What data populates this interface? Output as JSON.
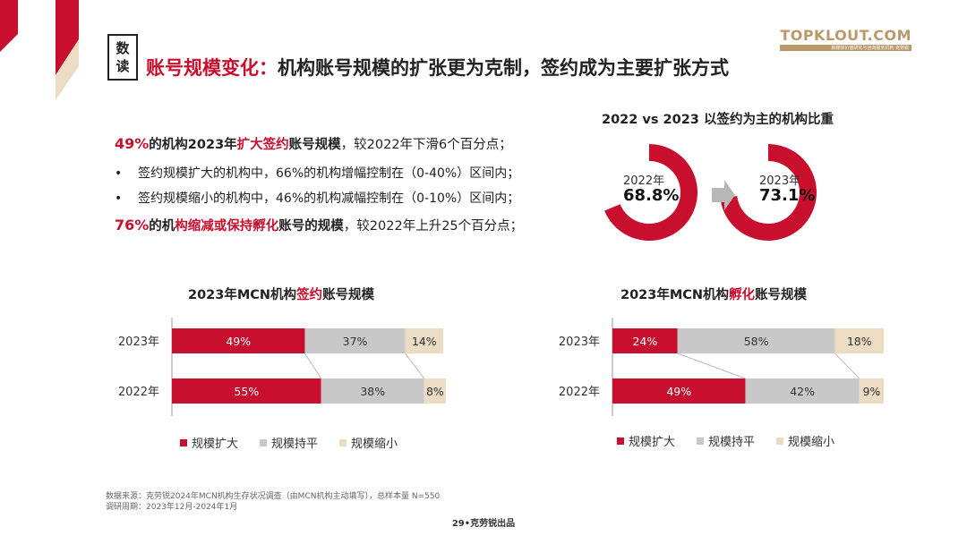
{
  "colors": {
    "accent": "#c8102e",
    "gray": "#c8c8c8",
    "beige": "#ecdcc4",
    "text": "#222222"
  },
  "header": {
    "badge": [
      "数",
      "读"
    ],
    "title_prefix": "账号规模变化：",
    "title_rest": "机构账号规模的扩张更为克制，签约成为主要扩张方式"
  },
  "logo": {
    "main": "TOPKLOUT.COM",
    "sub": "新媒体价值研究与咨询服务机构 克劳锐"
  },
  "bullets": {
    "b1": {
      "pct": "49%",
      "a": "的机构2023年",
      "hl": "扩大签约",
      "b": "账号规模，较2022年下滑6个百分点；"
    },
    "b2": {
      "dot": "•",
      "text": "签约规模扩大的机构中，66%的机构增幅控制在（0-40%）区间内；"
    },
    "b3": {
      "dot": "•",
      "text": "签约规模缩小的机构中，46%的机构减幅控制在（0-10%）区间内；"
    },
    "b4": {
      "pct": "76%",
      "a": "的机",
      "hl": "构缩减或保持孵化",
      "b": "账号的规模，较2022年上升25个百分点；"
    }
  },
  "chart_data": [
    {
      "type": "pie",
      "title": "2022 vs 2023 以签约为主的机构比重",
      "slices": [
        {
          "label": "2022年",
          "value": 68.8,
          "display": "68.8%"
        },
        {
          "label": "2023年",
          "value": 73.1,
          "display": "73.1%"
        }
      ]
    },
    {
      "type": "bar",
      "stacked": true,
      "orientation": "horizontal",
      "title_a": "2023年MCN机构",
      "title_hl": "签约",
      "title_b": "账号规模",
      "categories": [
        "2023年",
        "2022年"
      ],
      "series": [
        {
          "name": "规模扩大",
          "values": [
            49,
            55
          ],
          "labels": [
            "49%",
            "55%"
          ]
        },
        {
          "name": "规模持平",
          "values": [
            37,
            38
          ],
          "labels": [
            "37%",
            "38%"
          ]
        },
        {
          "name": "规模缩小",
          "values": [
            14,
            8
          ],
          "labels": [
            "14%",
            "8%"
          ]
        }
      ],
      "legend": "bottom"
    },
    {
      "type": "bar",
      "stacked": true,
      "orientation": "horizontal",
      "title_a": "2023年MCN机构",
      "title_hl": "孵化",
      "title_b": "账号规模",
      "categories": [
        "2023年",
        "2022年"
      ],
      "series": [
        {
          "name": "规模扩大",
          "values": [
            24,
            49
          ],
          "labels": [
            "24%",
            "49%"
          ]
        },
        {
          "name": "规模持平",
          "values": [
            58,
            42
          ],
          "labels": [
            "58%",
            "42%"
          ]
        },
        {
          "name": "规模缩小",
          "values": [
            18,
            9
          ],
          "labels": [
            "18%",
            "9%"
          ]
        }
      ],
      "legend": "bottom"
    }
  ],
  "footnote": {
    "line1": "数据来源：克劳锐2024年MCN机构生存状况调查（由MCN机构主动填写），总样本量 N=550",
    "line2": "调研周期：2023年12月-2024年1月"
  },
  "page": "29•克劳锐出品"
}
